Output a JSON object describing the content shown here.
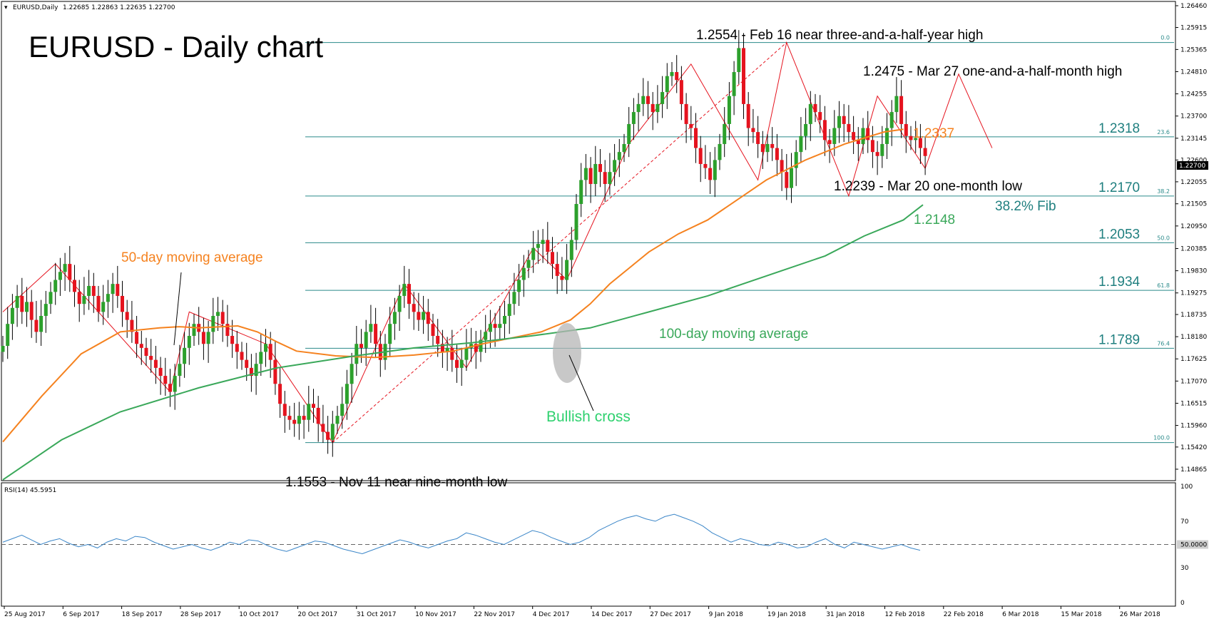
{
  "chart_data": {
    "type": "candlestick",
    "header": {
      "symbol": "EURUSD,Daily",
      "ohlc": "1.22685 1.22863 1.22635 1.22700"
    },
    "title": "EURUSD - Daily chart",
    "ylim": [
      1.1465,
      1.2646
    ],
    "price_ticks": [
      "1.26460",
      "1.25915",
      "1.25365",
      "1.24810",
      "1.24255",
      "1.23700",
      "1.23145",
      "1.22600",
      "1.22055",
      "1.21505",
      "1.20950",
      "1.20385",
      "1.19830",
      "1.19275",
      "1.18735",
      "1.18180",
      "1.17625",
      "1.17070",
      "1.16515",
      "1.15960",
      "1.15420",
      "1.14865"
    ],
    "current_price_label": "1.22700",
    "date_ticks": [
      "25 Aug 2017",
      "6 Sep 2017",
      "18 Sep 2017",
      "28 Sep 2017",
      "10 Oct 2017",
      "20 Oct 2017",
      "31 Oct 2017",
      "10 Nov 2017",
      "22 Nov 2017",
      "4 Dec 2017",
      "14 Dec 2017",
      "27 Dec 2017",
      "9 Jan 2018",
      "19 Jan 2018",
      "31 Jan 2018",
      "12 Feb 2018",
      "22 Feb 2018",
      "6 Mar 2018",
      "15 Mar 2018",
      "26 Mar 2018"
    ],
    "fib_levels": [
      {
        "price": 1.2554,
        "pct": "0.0",
        "label": ""
      },
      {
        "price": 1.2318,
        "pct": "23.6",
        "label": "1.2318"
      },
      {
        "price": 1.217,
        "pct": "38.2",
        "label": "1.2170"
      },
      {
        "price": 1.2053,
        "pct": "50.0",
        "label": "1.2053"
      },
      {
        "price": 1.1934,
        "pct": "61.8",
        "label": "1.1934"
      },
      {
        "price": 1.1789,
        "pct": "76.4",
        "label": "1.1789"
      },
      {
        "price": 1.1553,
        "pct": "100.0",
        "label": ""
      }
    ],
    "closes": [
      1.1795,
      1.185,
      1.189,
      1.192,
      1.188,
      1.1905,
      1.186,
      1.183,
      1.187,
      1.19,
      1.193,
      1.196,
      1.198,
      1.2,
      1.196,
      1.193,
      1.19,
      1.192,
      1.1945,
      1.192,
      1.188,
      1.1905,
      1.1925,
      1.195,
      1.192,
      1.188,
      1.186,
      1.183,
      1.18,
      1.179,
      1.177,
      1.176,
      1.174,
      1.172,
      1.17,
      1.168,
      1.172,
      1.175,
      1.179,
      1.182,
      1.185,
      1.183,
      1.18,
      1.183,
      1.187,
      1.188,
      1.185,
      1.182,
      1.18,
      1.178,
      1.176,
      1.174,
      1.172,
      1.175,
      1.178,
      1.18,
      1.176,
      1.17,
      1.165,
      1.162,
      1.161,
      1.16,
      1.162,
      1.161,
      1.165,
      1.164,
      1.16,
      1.158,
      1.156,
      1.16,
      1.162,
      1.165,
      1.17,
      1.175,
      1.18,
      1.179,
      1.183,
      1.185,
      1.18,
      1.176,
      1.18,
      1.185,
      1.188,
      1.192,
      1.195,
      1.19,
      1.188,
      1.186,
      1.188,
      1.185,
      1.182,
      1.18,
      1.178,
      1.179,
      1.176,
      1.174,
      1.176,
      1.179,
      1.18,
      1.178,
      1.181,
      1.183,
      1.185,
      1.184,
      1.185,
      1.187,
      1.19,
      1.193,
      1.196,
      1.199,
      1.201,
      1.204,
      1.205,
      1.206,
      1.203,
      1.2,
      1.197,
      1.196,
      1.201,
      1.206,
      1.215,
      1.221,
      1.224,
      1.22,
      1.225,
      1.223,
      1.22,
      1.223,
      1.226,
      1.228,
      1.23,
      1.235,
      1.238,
      1.24,
      1.242,
      1.24,
      1.238,
      1.24,
      1.243,
      1.247,
      1.248,
      1.246,
      1.24,
      1.235,
      1.234,
      1.229,
      1.225,
      1.224,
      1.221,
      1.226,
      1.23,
      1.235,
      1.242,
      1.248,
      1.254,
      1.24,
      1.234,
      1.233,
      1.23,
      1.228,
      1.23,
      1.229,
      1.226,
      1.223,
      1.219,
      1.224,
      1.228,
      1.232,
      1.235,
      1.24,
      1.238,
      1.236,
      1.231,
      1.23,
      1.234,
      1.237,
      1.235,
      1.233,
      1.231,
      1.23,
      1.234,
      1.231,
      1.228,
      1.227,
      1.23,
      1.234,
      1.238,
      1.242,
      1.235,
      1.232,
      1.231,
      1.2315,
      1.229,
      1.227
    ],
    "ma50": [
      [
        0,
        1.1555
      ],
      [
        20,
        1.167
      ],
      [
        40,
        1.1775
      ],
      [
        60,
        1.183
      ],
      [
        80,
        1.184
      ],
      [
        90,
        1.1843
      ],
      [
        100,
        1.184
      ],
      [
        120,
        1.1845
      ],
      [
        130,
        1.183
      ],
      [
        140,
        1.1805
      ],
      [
        150,
        1.1782
      ],
      [
        170,
        1.177
      ],
      [
        190,
        1.1766
      ],
      [
        210,
        1.1772
      ],
      [
        230,
        1.1782
      ],
      [
        245,
        1.18
      ],
      [
        260,
        1.1815
      ],
      [
        275,
        1.183
      ],
      [
        290,
        1.186
      ],
      [
        300,
        1.19
      ],
      [
        310,
        1.195
      ],
      [
        320,
        1.199
      ],
      [
        330,
        1.203
      ],
      [
        345,
        1.2075
      ],
      [
        360,
        1.211
      ],
      [
        375,
        1.216
      ],
      [
        390,
        1.221
      ],
      [
        410,
        1.226
      ],
      [
        430,
        1.23
      ],
      [
        450,
        1.233
      ],
      [
        460,
        1.2337
      ]
    ],
    "ma100": [
      [
        0,
        1.146
      ],
      [
        30,
        1.156
      ],
      [
        60,
        1.163
      ],
      [
        100,
        1.169
      ],
      [
        140,
        1.174
      ],
      [
        180,
        1.177
      ],
      [
        210,
        1.179
      ],
      [
        240,
        1.1803
      ],
      [
        270,
        1.182
      ],
      [
        300,
        1.184
      ],
      [
        330,
        1.188
      ],
      [
        360,
        1.192
      ],
      [
        390,
        1.197
      ],
      [
        420,
        1.202
      ],
      [
        440,
        1.207
      ],
      [
        460,
        1.211
      ],
      [
        470,
        1.2148
      ]
    ],
    "rsi": {
      "label": "RSI(14) 45.5951",
      "levels": [
        "100",
        "70",
        "50.0000",
        "30",
        "0"
      ],
      "values": [
        52,
        55,
        58,
        54,
        50,
        53,
        55,
        51,
        48,
        50,
        47,
        52,
        55,
        53,
        57,
        56,
        52,
        49,
        46,
        48,
        50,
        47,
        45,
        48,
        52,
        50,
        54,
        53,
        49,
        46,
        44,
        47,
        50,
        53,
        52,
        49,
        46,
        44,
        42,
        45,
        48,
        51,
        54,
        52,
        49,
        47,
        50,
        53,
        55,
        60,
        58,
        55,
        52,
        50,
        54,
        58,
        62,
        60,
        56,
        53,
        50,
        52,
        56,
        62,
        66,
        70,
        73,
        75,
        72,
        70,
        74,
        76,
        73,
        70,
        66,
        60,
        56,
        52,
        55,
        53,
        50,
        49,
        52,
        50,
        47,
        48,
        52,
        55,
        50,
        47,
        52,
        50,
        48,
        46,
        48,
        50,
        47,
        45
      ]
    },
    "annotations": [
      "1.2554 - Feb 16 near three-and-a-half-year high",
      "1.2475 - Mar 27 one-and-a-half-month high",
      "1.2337",
      "1.2239 - Mar 20 one-month low",
      "38.2% Fib",
      "1.2148",
      "50-day moving average",
      "100-day moving average",
      "Bullish cross",
      "1.1553 - Nov 11 near nine-month low"
    ]
  }
}
